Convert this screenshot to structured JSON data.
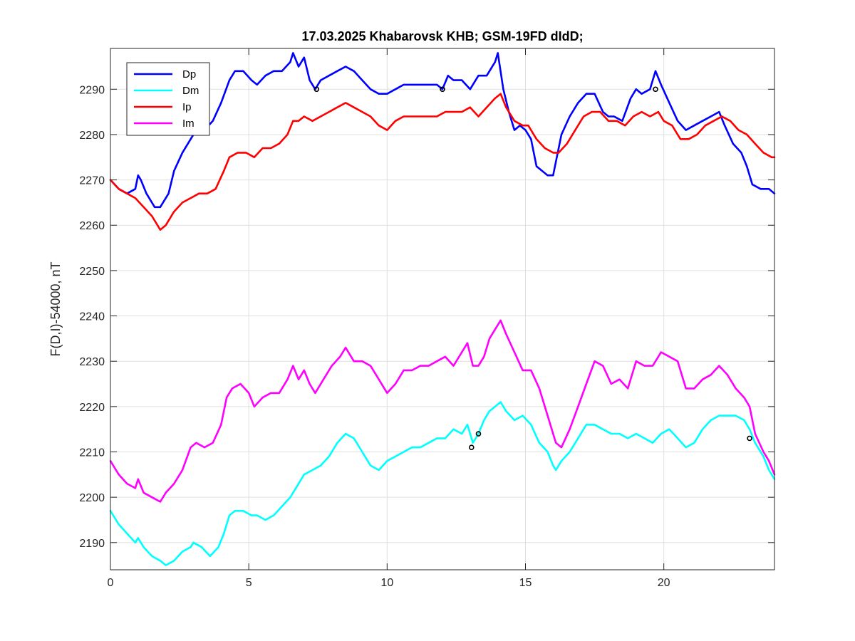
{
  "chart_data": {
    "type": "line",
    "title": "17.03.2025  Khabarovsk KHB; GSM-19FD dIdD;",
    "xlabel": "",
    "ylabel": "F(D,I)-54000, nT",
    "xlim": [
      0,
      24
    ],
    "ylim": [
      2184,
      2299
    ],
    "xticks": [
      0,
      5,
      10,
      15,
      20
    ],
    "yticks": [
      2190,
      2200,
      2210,
      2220,
      2230,
      2240,
      2250,
      2260,
      2270,
      2280,
      2290
    ],
    "grid": true,
    "legend_position": "top-left",
    "series": [
      {
        "name": "Dp",
        "color": "#0000ff",
        "x": [
          0,
          0.3,
          0.6,
          0.9,
          1.0,
          1.1,
          1.3,
          1.6,
          1.8,
          2.1,
          2.3,
          2.6,
          2.9,
          3.1,
          3.4,
          3.7,
          4.0,
          4.3,
          4.5,
          4.8,
          5.1,
          5.3,
          5.6,
          5.9,
          6.2,
          6.5,
          6.6,
          6.8,
          7.0,
          7.2,
          7.4,
          7.6,
          7.9,
          8.2,
          8.5,
          8.8,
          9.1,
          9.4,
          9.7,
          10.0,
          10.3,
          10.6,
          10.9,
          11.2,
          11.5,
          11.8,
          12.0,
          12.2,
          12.4,
          12.7,
          13.0,
          13.3,
          13.6,
          13.9,
          14.0,
          14.2,
          14.4,
          14.6,
          14.8,
          15.0,
          15.2,
          15.4,
          15.6,
          15.8,
          16.0,
          16.1,
          16.3,
          16.6,
          16.9,
          17.2,
          17.5,
          17.8,
          18.0,
          18.2,
          18.5,
          18.8,
          19.0,
          19.2,
          19.5,
          19.7,
          19.9,
          20.2,
          20.5,
          20.8,
          21.1,
          21.4,
          21.7,
          22.0,
          22.2,
          22.5,
          22.8,
          23.0,
          23.2,
          23.5,
          23.8,
          24.0
        ],
        "y": [
          2270,
          2268,
          2267,
          2268,
          2271,
          2270,
          2267,
          2264,
          2264,
          2267,
          2272,
          2276,
          2279,
          2281,
          2281,
          2283,
          2287,
          2292,
          2294,
          2294,
          2292,
          2291,
          2293,
          2294,
          2294,
          2296,
          2298,
          2295,
          2297,
          2292,
          2290,
          2292,
          2293,
          2294,
          2295,
          2294,
          2292,
          2290,
          2289,
          2289,
          2290,
          2291,
          2291,
          2291,
          2291,
          2291,
          2290,
          2293,
          2292,
          2292,
          2290,
          2293,
          2293,
          2296,
          2298,
          2290,
          2285,
          2281,
          2282,
          2281,
          2279,
          2273,
          2272,
          2271,
          2271,
          2274,
          2280,
          2284,
          2287,
          2289,
          2289,
          2285,
          2284,
          2284,
          2283,
          2288,
          2290,
          2289,
          2290,
          2294,
          2291,
          2287,
          2283,
          2281,
          2282,
          2283,
          2284,
          2285,
          2282,
          2278,
          2276,
          2273,
          2269,
          2268,
          2268,
          2267
        ]
      },
      {
        "name": "Dm",
        "color": "#00ffff",
        "x": [
          0,
          0.3,
          0.6,
          0.9,
          1.0,
          1.2,
          1.5,
          1.8,
          2.0,
          2.3,
          2.6,
          2.9,
          3.0,
          3.3,
          3.6,
          3.9,
          4.1,
          4.3,
          4.5,
          4.8,
          5.1,
          5.3,
          5.6,
          5.9,
          6.2,
          6.5,
          6.8,
          7.0,
          7.3,
          7.6,
          7.9,
          8.2,
          8.5,
          8.8,
          9.1,
          9.4,
          9.7,
          10.0,
          10.3,
          10.6,
          10.9,
          11.2,
          11.5,
          11.8,
          12.1,
          12.4,
          12.7,
          12.9,
          13.1,
          13.3,
          13.5,
          13.7,
          13.9,
          14.1,
          14.3,
          14.6,
          14.9,
          15.2,
          15.5,
          15.8,
          16.0,
          16.1,
          16.3,
          16.6,
          16.9,
          17.2,
          17.5,
          17.8,
          18.1,
          18.4,
          18.7,
          19.0,
          19.3,
          19.6,
          19.9,
          20.2,
          20.5,
          20.8,
          21.1,
          21.4,
          21.7,
          22.0,
          22.3,
          22.6,
          22.9,
          23.1,
          23.3,
          23.6,
          23.8,
          24.0
        ],
        "y": [
          2197,
          2194,
          2192,
          2190,
          2191,
          2189,
          2187,
          2186,
          2185,
          2186,
          2188,
          2189,
          2190,
          2189,
          2187,
          2189,
          2192,
          2196,
          2197,
          2197,
          2196,
          2196,
          2195,
          2196,
          2198,
          2200,
          2203,
          2205,
          2206,
          2207,
          2209,
          2212,
          2214,
          2213,
          2210,
          2207,
          2206,
          2208,
          2209,
          2210,
          2211,
          2211,
          2212,
          2213,
          2213,
          2215,
          2214,
          2216,
          2212,
          2214,
          2217,
          2219,
          2220,
          2221,
          2219,
          2217,
          2218,
          2216,
          2212,
          2210,
          2207,
          2206,
          2208,
          2210,
          2213,
          2216,
          2216,
          2215,
          2214,
          2214,
          2213,
          2214,
          2213,
          2212,
          2214,
          2215,
          2213,
          2211,
          2212,
          2215,
          2217,
          2218,
          2218,
          2218,
          2217,
          2215,
          2212,
          2209,
          2206,
          2204
        ]
      },
      {
        "name": "Ip",
        "color": "#ff0000",
        "x": [
          0,
          0.3,
          0.6,
          0.9,
          1.2,
          1.5,
          1.8,
          2.0,
          2.3,
          2.6,
          2.9,
          3.2,
          3.5,
          3.8,
          4.1,
          4.3,
          4.6,
          4.9,
          5.2,
          5.5,
          5.8,
          6.1,
          6.4,
          6.6,
          6.8,
          7.0,
          7.3,
          7.6,
          7.9,
          8.2,
          8.5,
          8.8,
          9.1,
          9.4,
          9.7,
          10.0,
          10.3,
          10.6,
          10.9,
          11.2,
          11.5,
          11.8,
          12.1,
          12.4,
          12.7,
          13.0,
          13.3,
          13.6,
          13.9,
          14.1,
          14.3,
          14.6,
          14.9,
          15.1,
          15.4,
          15.7,
          16.0,
          16.2,
          16.5,
          16.8,
          17.1,
          17.4,
          17.7,
          18.0,
          18.3,
          18.6,
          18.9,
          19.2,
          19.5,
          19.8,
          20.0,
          20.3,
          20.6,
          20.9,
          21.2,
          21.5,
          21.8,
          22.1,
          22.4,
          22.7,
          23.0,
          23.3,
          23.6,
          23.9,
          24.0
        ],
        "y": [
          2270,
          2268,
          2267,
          2266,
          2264,
          2262,
          2259,
          2260,
          2263,
          2265,
          2266,
          2267,
          2267,
          2268,
          2272,
          2275,
          2276,
          2276,
          2275,
          2277,
          2277,
          2278,
          2280,
          2283,
          2283,
          2284,
          2283,
          2284,
          2285,
          2286,
          2287,
          2286,
          2285,
          2284,
          2282,
          2281,
          2283,
          2284,
          2284,
          2284,
          2284,
          2284,
          2285,
          2285,
          2285,
          2286,
          2284,
          2286,
          2288,
          2289,
          2286,
          2283,
          2282,
          2282,
          2279,
          2277,
          2276,
          2276,
          2278,
          2281,
          2284,
          2285,
          2285,
          2283,
          2283,
          2282,
          2284,
          2285,
          2284,
          2285,
          2283,
          2282,
          2279,
          2279,
          2280,
          2282,
          2283,
          2284,
          2283,
          2281,
          2280,
          2278,
          2276,
          2275,
          2275
        ]
      },
      {
        "name": "Im",
        "color": "#ff00ff",
        "x": [
          0,
          0.3,
          0.6,
          0.9,
          1.0,
          1.2,
          1.5,
          1.8,
          2.0,
          2.3,
          2.6,
          2.9,
          3.1,
          3.4,
          3.7,
          4.0,
          4.2,
          4.4,
          4.7,
          5.0,
          5.2,
          5.5,
          5.8,
          6.1,
          6.4,
          6.6,
          6.8,
          7.0,
          7.2,
          7.4,
          7.7,
          8.0,
          8.3,
          8.5,
          8.8,
          9.1,
          9.4,
          9.7,
          10.0,
          10.3,
          10.6,
          10.9,
          11.2,
          11.5,
          11.8,
          12.1,
          12.4,
          12.7,
          12.9,
          13.1,
          13.3,
          13.5,
          13.7,
          13.9,
          14.1,
          14.3,
          14.6,
          14.9,
          15.2,
          15.5,
          15.8,
          16.0,
          16.1,
          16.3,
          16.6,
          16.9,
          17.2,
          17.5,
          17.8,
          18.1,
          18.4,
          18.7,
          19.0,
          19.3,
          19.6,
          19.9,
          20.2,
          20.5,
          20.8,
          21.1,
          21.4,
          21.7,
          22.0,
          22.3,
          22.6,
          22.9,
          23.1,
          23.3,
          23.6,
          23.8,
          24.0
        ],
        "y": [
          2208,
          2205,
          2203,
          2202,
          2204,
          2201,
          2200,
          2199,
          2201,
          2203,
          2206,
          2211,
          2212,
          2211,
          2212,
          2216,
          2222,
          2224,
          2225,
          2223,
          2220,
          2222,
          2223,
          2223,
          2226,
          2229,
          2226,
          2228,
          2225,
          2223,
          2226,
          2229,
          2231,
          2233,
          2230,
          2230,
          2229,
          2226,
          2223,
          2225,
          2228,
          2228,
          2229,
          2229,
          2230,
          2231,
          2229,
          2232,
          2234,
          2229,
          2229,
          2231,
          2235,
          2237,
          2239,
          2236,
          2232,
          2228,
          2228,
          2224,
          2218,
          2214,
          2212,
          2211,
          2215,
          2220,
          2225,
          2230,
          2229,
          2225,
          2226,
          2224,
          2230,
          2229,
          2229,
          2232,
          2231,
          2230,
          2224,
          2224,
          2226,
          2227,
          2229,
          2227,
          2224,
          2222,
          2220,
          2214,
          2210,
          2208,
          2205
        ]
      }
    ],
    "markers": [
      {
        "x": 7.45,
        "y": 2290
      },
      {
        "x": 12.0,
        "y": 2290
      },
      {
        "x": 19.7,
        "y": 2290
      },
      {
        "x": 13.05,
        "y": 2211
      },
      {
        "x": 13.3,
        "y": 2214
      },
      {
        "x": 23.1,
        "y": 2213
      }
    ]
  }
}
